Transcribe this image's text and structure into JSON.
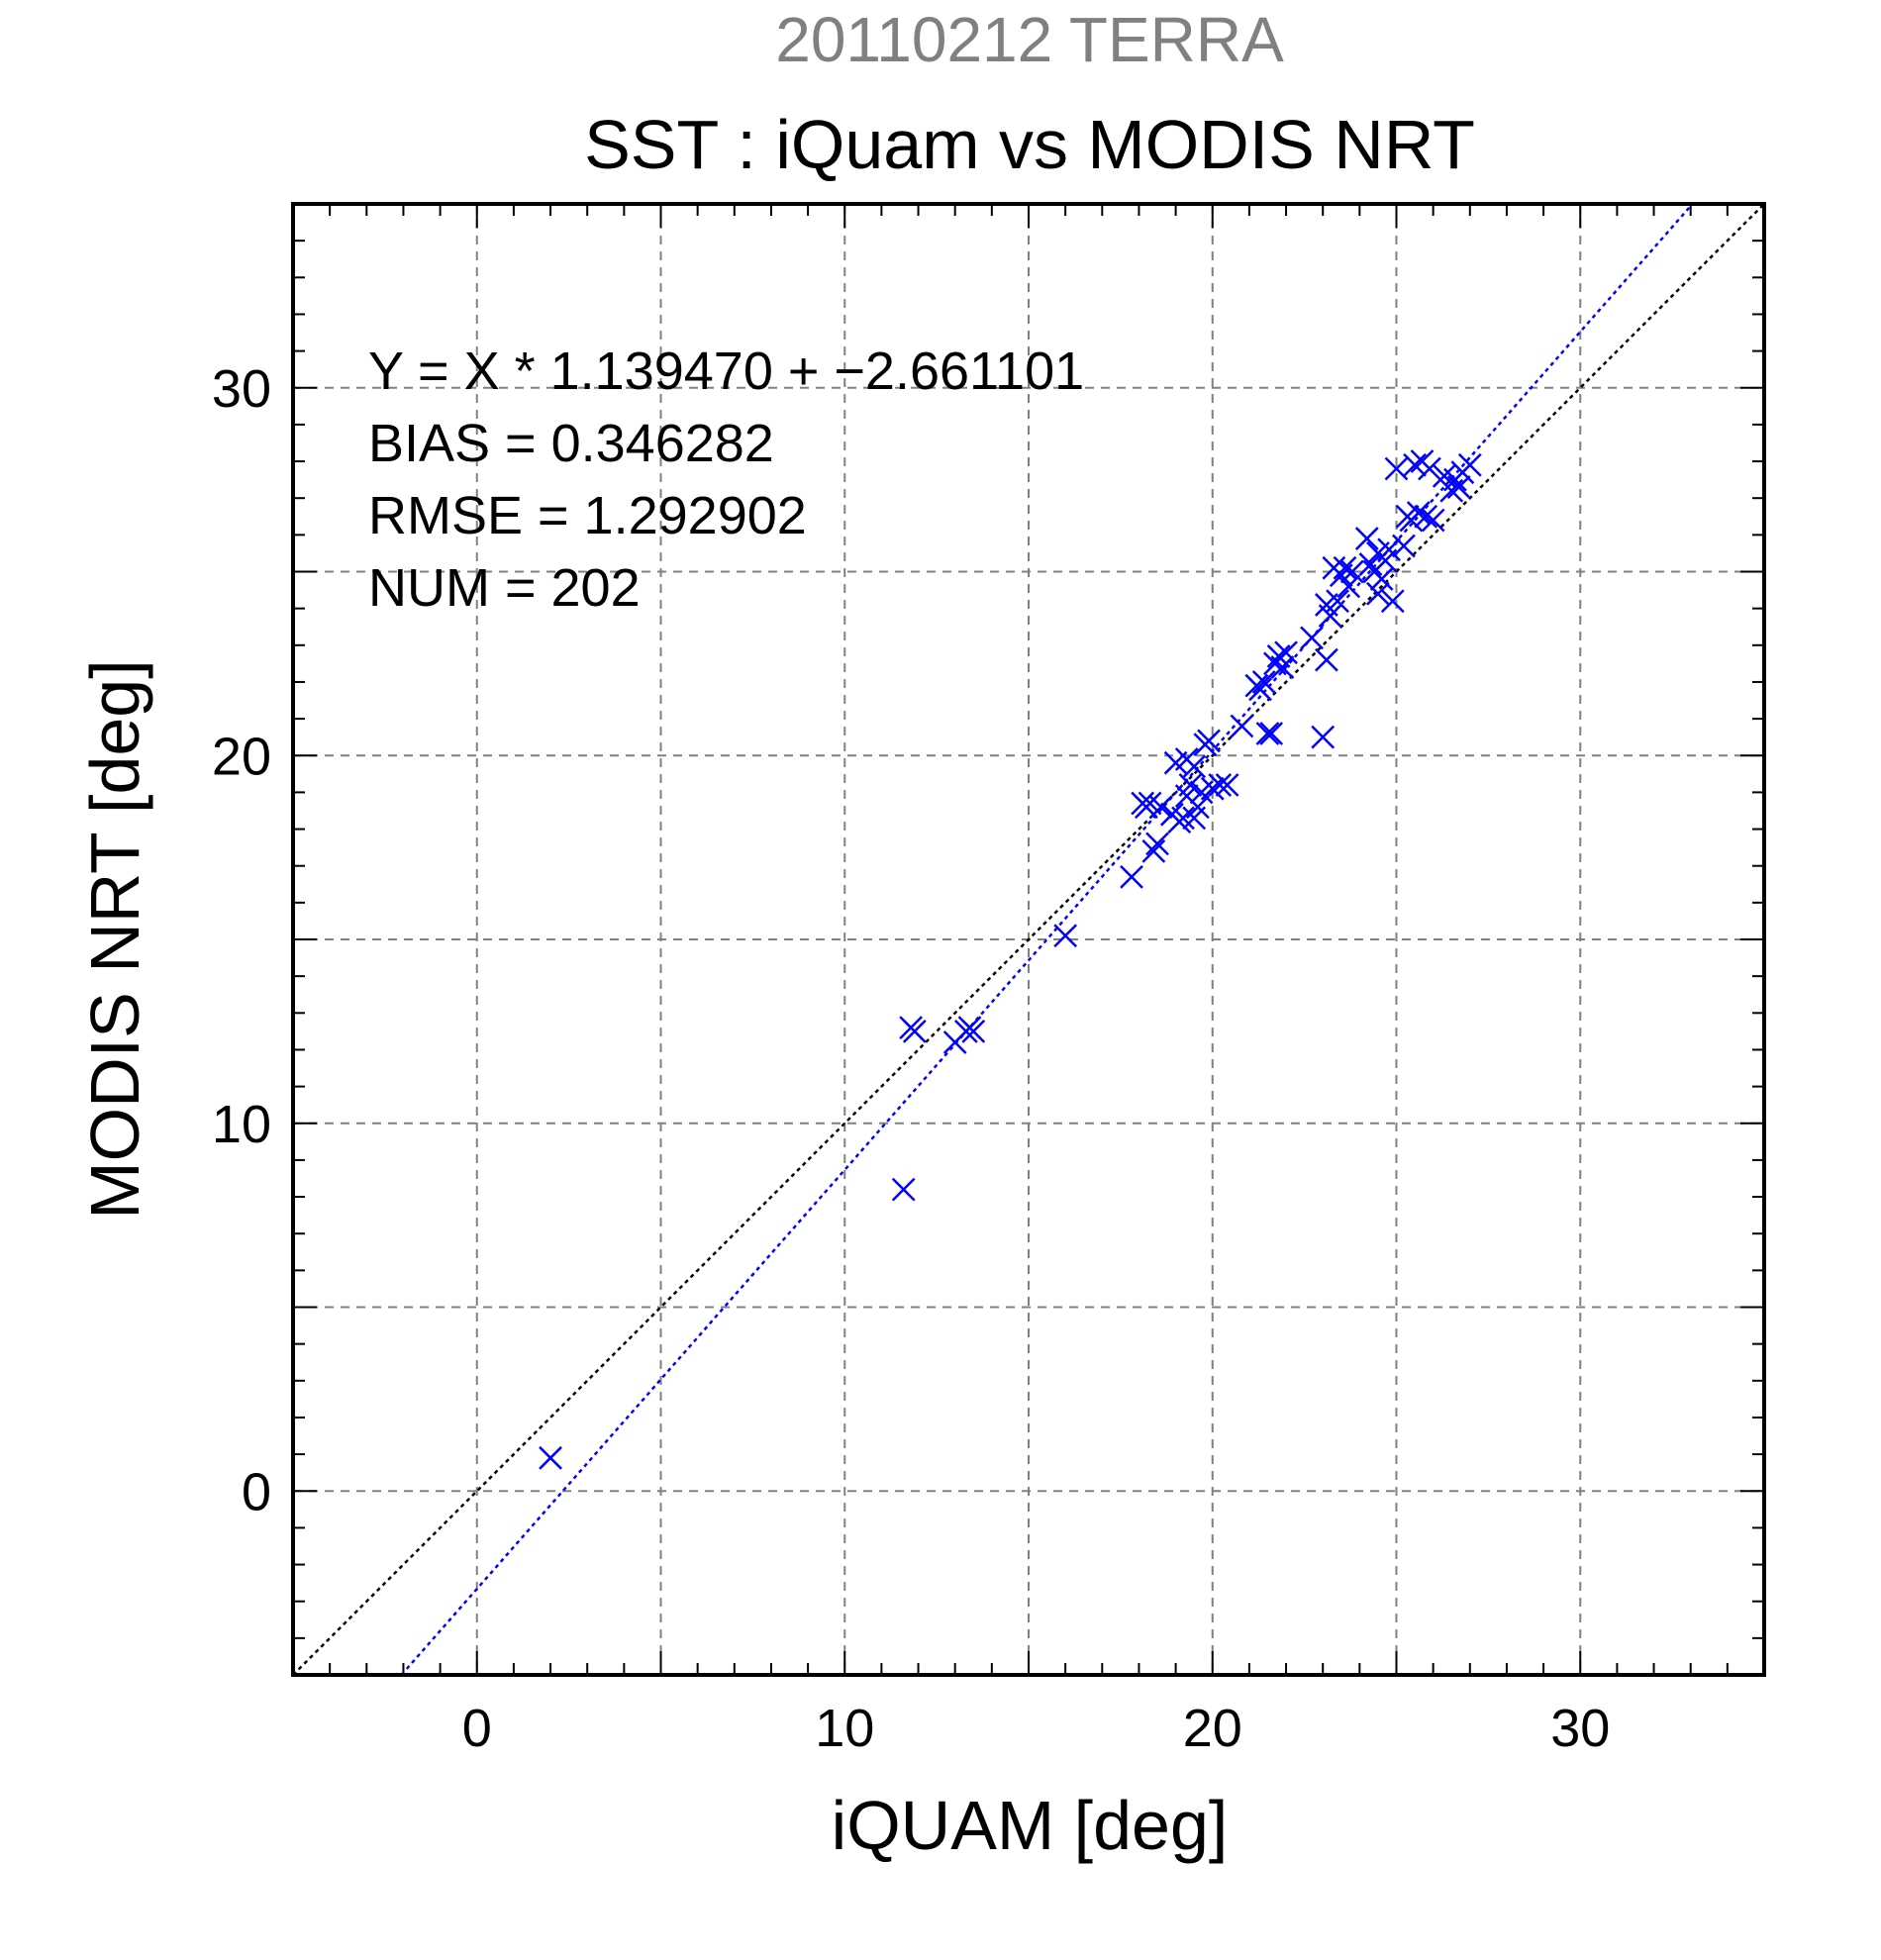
{
  "chart_data": {
    "type": "scatter",
    "supertitle": "20110212 TERRA",
    "title": "SST : iQuam vs MODIS NRT",
    "xlabel": "iQUAM [deg]",
    "ylabel": "MODIS NRT [deg]",
    "xlim": [
      -5,
      35
    ],
    "ylim": [
      -5,
      35
    ],
    "xticks": [
      0,
      10,
      20,
      30
    ],
    "yticks": [
      0,
      10,
      20,
      30
    ],
    "xtick_labels": [
      "0",
      "10",
      "20",
      "30"
    ],
    "ytick_labels": [
      "0",
      "10",
      "20",
      "30"
    ],
    "grid": true,
    "grid_step": 5,
    "minor_tick_step": 1,
    "stats": [
      "Y = X * 1.139470 + −2.661101",
      "BIAS = 0.346282",
      "RMSE = 1.292902",
      "NUM = 202"
    ],
    "fit_line": {
      "slope": 1.13947,
      "intercept": -2.661101,
      "color": "#0000ff",
      "style": "dotted"
    },
    "identity_line": {
      "slope": 1,
      "intercept": 0,
      "color": "#000000",
      "style": "dotted"
    },
    "series": [
      {
        "marker": "x",
        "color": "#0000ff",
        "points": [
          [
            2.0,
            0.9
          ],
          [
            11.6,
            8.2
          ],
          [
            11.8,
            12.6
          ],
          [
            11.9,
            12.5
          ],
          [
            13.0,
            12.2
          ],
          [
            13.3,
            12.5
          ],
          [
            13.4,
            12.6
          ],
          [
            13.5,
            12.5
          ],
          [
            16.0,
            15.1
          ],
          [
            17.8,
            16.7
          ],
          [
            18.1,
            18.7
          ],
          [
            18.2,
            18.6
          ],
          [
            18.3,
            18.7
          ],
          [
            18.4,
            17.4
          ],
          [
            18.5,
            17.6
          ],
          [
            18.6,
            18.6
          ],
          [
            18.9,
            18.4
          ],
          [
            19.0,
            19.8
          ],
          [
            19.1,
            18.2
          ],
          [
            19.2,
            18.3
          ],
          [
            19.3,
            19.9
          ],
          [
            19.3,
            18.9
          ],
          [
            19.4,
            19.2
          ],
          [
            19.5,
            18.3
          ],
          [
            19.5,
            19.7
          ],
          [
            19.6,
            18.6
          ],
          [
            19.7,
            19.0
          ],
          [
            19.8,
            20.3
          ],
          [
            19.9,
            20.4
          ],
          [
            20.0,
            19.1
          ],
          [
            20.2,
            19.2
          ],
          [
            20.4,
            19.2
          ],
          [
            20.8,
            20.8
          ],
          [
            21.2,
            21.9
          ],
          [
            21.3,
            21.8
          ],
          [
            21.4,
            22.0
          ],
          [
            21.5,
            20.6
          ],
          [
            21.6,
            20.6
          ],
          [
            21.7,
            22.5
          ],
          [
            21.8,
            22.7
          ],
          [
            21.9,
            22.4
          ],
          [
            22.0,
            22.8
          ],
          [
            22.7,
            23.2
          ],
          [
            23.0,
            20.5
          ],
          [
            23.1,
            22.6
          ],
          [
            23.1,
            24.1
          ],
          [
            23.2,
            23.8
          ],
          [
            23.3,
            25.1
          ],
          [
            23.4,
            24.2
          ],
          [
            23.5,
            24.9
          ],
          [
            23.6,
            25.1
          ],
          [
            23.7,
            24.6
          ],
          [
            23.8,
            25.0
          ],
          [
            24.2,
            25.9
          ],
          [
            24.3,
            25.2
          ],
          [
            24.4,
            25.0
          ],
          [
            24.5,
            24.4
          ],
          [
            24.5,
            25.5
          ],
          [
            24.6,
            24.8
          ],
          [
            24.7,
            25.3
          ],
          [
            24.8,
            25.6
          ],
          [
            24.9,
            24.2
          ],
          [
            25.0,
            27.8
          ],
          [
            25.2,
            25.7
          ],
          [
            25.3,
            26.5
          ],
          [
            25.4,
            26.4
          ],
          [
            25.5,
            27.9
          ],
          [
            25.6,
            26.6
          ],
          [
            25.7,
            28.0
          ],
          [
            25.8,
            26.5
          ],
          [
            25.9,
            27.8
          ],
          [
            26.0,
            26.4
          ],
          [
            26.3,
            27.6
          ],
          [
            26.5,
            27.2
          ],
          [
            26.6,
            27.5
          ],
          [
            26.7,
            27.3
          ],
          [
            26.8,
            27.7
          ],
          [
            27.0,
            27.9
          ]
        ]
      }
    ]
  }
}
